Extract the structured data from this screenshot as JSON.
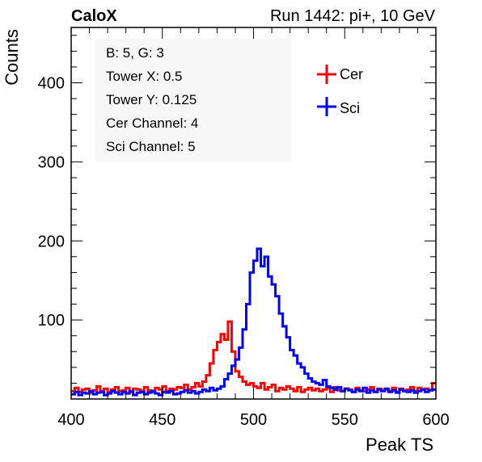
{
  "header": {
    "left_label": "CaloX",
    "right_label": "Run 1442: pi+, 10 GeV"
  },
  "info_box": {
    "lines": [
      "B: 5, G: 3",
      "Tower X: 0.5",
      "Tower Y: 0.125",
      "Cer Channel: 4",
      "Sci Channel: 5"
    ]
  },
  "colors": {
    "cer": "#ff0000",
    "sci": "#0000ff",
    "info_bg": "#f7f7f7"
  },
  "chart_data": {
    "type": "line",
    "step": true,
    "xlabel": "Peak TS",
    "ylabel": "Counts",
    "xlim": [
      400,
      600
    ],
    "ylim": [
      0,
      470
    ],
    "x_ticks": [
      400,
      450,
      500,
      550,
      600
    ],
    "y_ticks": [
      100,
      200,
      300,
      400
    ],
    "legend_position": "top-right",
    "bin_width": 2,
    "series": [
      {
        "name": "Cer",
        "color": "#ff0000",
        "x": [
          400,
          402,
          404,
          406,
          408,
          410,
          412,
          414,
          416,
          418,
          420,
          422,
          424,
          426,
          428,
          430,
          432,
          434,
          436,
          438,
          440,
          442,
          444,
          446,
          448,
          450,
          452,
          454,
          456,
          458,
          460,
          462,
          464,
          466,
          468,
          470,
          472,
          474,
          476,
          478,
          480,
          482,
          484,
          486,
          488,
          490,
          492,
          494,
          496,
          498,
          500,
          502,
          504,
          506,
          508,
          510,
          512,
          514,
          516,
          518,
          520,
          522,
          524,
          526,
          528,
          530,
          532,
          534,
          536,
          538,
          540,
          542,
          544,
          546,
          548,
          550,
          552,
          554,
          556,
          558,
          560,
          562,
          564,
          566,
          568,
          570,
          572,
          574,
          576,
          578,
          580,
          582,
          584,
          586,
          588,
          590,
          592,
          594,
          596,
          598
        ],
        "values": [
          10,
          14,
          9,
          12,
          13,
          8,
          11,
          16,
          10,
          13,
          9,
          12,
          15,
          10,
          11,
          14,
          9,
          13,
          12,
          10,
          15,
          11,
          9,
          14,
          12,
          16,
          10,
          13,
          12,
          15,
          14,
          18,
          12,
          15,
          20,
          16,
          22,
          30,
          45,
          62,
          72,
          82,
          75,
          98,
          60,
          35,
          28,
          22,
          18,
          20,
          16,
          14,
          20,
          12,
          15,
          18,
          10,
          14,
          12,
          16,
          13,
          10,
          15,
          9,
          12,
          14,
          11,
          13,
          10,
          12,
          14,
          9,
          15,
          11,
          10,
          13,
          12,
          9,
          14,
          11,
          10,
          12,
          15,
          9,
          13,
          11,
          12,
          10,
          14,
          9,
          13,
          11,
          12,
          15,
          10,
          14,
          12,
          13,
          11,
          20
        ]
      },
      {
        "name": "Sci",
        "color": "#0000ff",
        "x": [
          400,
          402,
          404,
          406,
          408,
          410,
          412,
          414,
          416,
          418,
          420,
          422,
          424,
          426,
          428,
          430,
          432,
          434,
          436,
          438,
          440,
          442,
          444,
          446,
          448,
          450,
          452,
          454,
          456,
          458,
          460,
          462,
          464,
          466,
          468,
          470,
          472,
          474,
          476,
          478,
          480,
          482,
          484,
          486,
          488,
          490,
          492,
          494,
          496,
          498,
          500,
          502,
          504,
          506,
          508,
          510,
          512,
          514,
          516,
          518,
          520,
          522,
          524,
          526,
          528,
          530,
          532,
          534,
          536,
          538,
          540,
          542,
          544,
          546,
          548,
          550,
          552,
          554,
          556,
          558,
          560,
          562,
          564,
          566,
          568,
          570,
          572,
          574,
          576,
          578,
          580,
          582,
          584,
          586,
          588,
          590,
          592,
          594,
          596,
          598
        ],
        "values": [
          6,
          9,
          5,
          8,
          7,
          10,
          6,
          8,
          9,
          5,
          7,
          10,
          8,
          6,
          9,
          7,
          10,
          5,
          8,
          9,
          6,
          8,
          10,
          7,
          5,
          9,
          8,
          10,
          6,
          7,
          9,
          11,
          8,
          10,
          7,
          9,
          12,
          10,
          14,
          11,
          13,
          16,
          25,
          32,
          42,
          50,
          65,
          88,
          120,
          160,
          175,
          190,
          168,
          180,
          155,
          145,
          130,
          108,
          92,
          78,
          62,
          55,
          45,
          40,
          32,
          26,
          22,
          20,
          18,
          24,
          16,
          14,
          12,
          15,
          10,
          13,
          11,
          9,
          12,
          10,
          14,
          8,
          11,
          9,
          12,
          10,
          13,
          9,
          11,
          8,
          12,
          10,
          9,
          11,
          8,
          10,
          12,
          9,
          11,
          12
        ]
      }
    ]
  }
}
